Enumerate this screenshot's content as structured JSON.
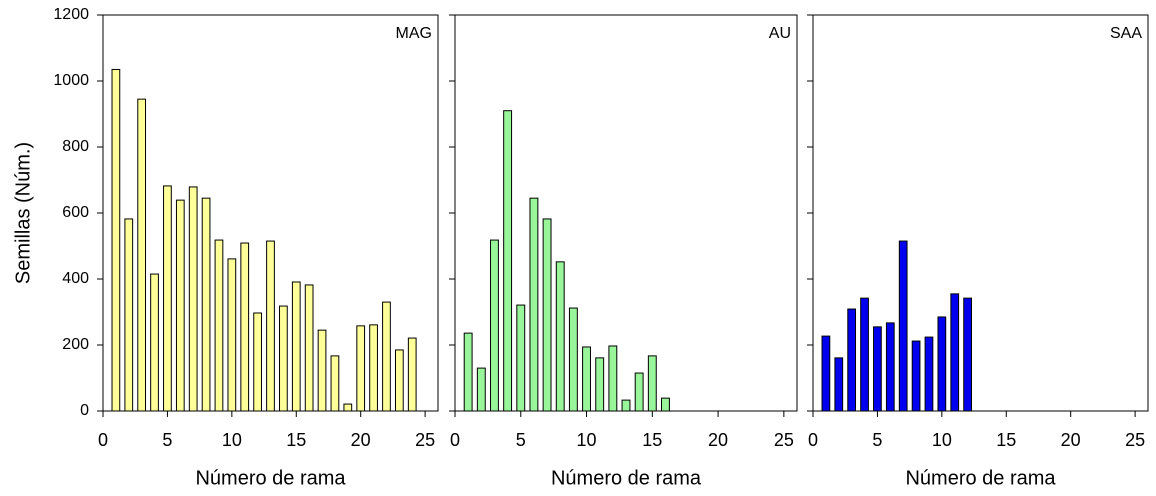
{
  "chart_data": [
    {
      "type": "bar",
      "label": "MAG",
      "ylabel": "Semillas (Núm.)",
      "xlabel": "Número de rama",
      "color": "#ffff99",
      "x": [
        1,
        2,
        3,
        4,
        5,
        6,
        7,
        8,
        9,
        10,
        11,
        12,
        13,
        14,
        15,
        16,
        17,
        18,
        19,
        20,
        21,
        22,
        23,
        24
      ],
      "values": [
        1035,
        582,
        945,
        415,
        682,
        639,
        679,
        645,
        518,
        461,
        509,
        297,
        515,
        318,
        391,
        382,
        245,
        167,
        21,
        258,
        261,
        330,
        185,
        221
      ],
      "xlim": [
        0,
        26
      ],
      "xticks": [
        0,
        5,
        10,
        15,
        20,
        25
      ],
      "ylim": [
        0,
        1200
      ],
      "yticks": [
        0,
        200,
        400,
        600,
        800,
        1000,
        1200
      ]
    },
    {
      "type": "bar",
      "label": "AU",
      "xlabel": "Número de rama",
      "color": "#99f599",
      "x": [
        1,
        2,
        3,
        4,
        5,
        6,
        7,
        8,
        9,
        10,
        11,
        12,
        13,
        14,
        15,
        16
      ],
      "values": [
        236,
        130,
        518,
        910,
        321,
        645,
        582,
        452,
        312,
        194,
        161,
        197,
        33,
        115,
        167,
        39
      ],
      "xlim": [
        0,
        26
      ],
      "xticks": [
        0,
        5,
        10,
        15,
        20,
        25
      ],
      "ylim": [
        0,
        1200
      ],
      "yticks": [
        0,
        200,
        400,
        600,
        800,
        1000,
        1200
      ]
    },
    {
      "type": "bar",
      "label": "SAA",
      "xlabel": "Número de rama",
      "color": "#0000ee",
      "x": [
        1,
        2,
        3,
        4,
        5,
        6,
        7,
        8,
        9,
        10,
        11,
        12
      ],
      "values": [
        227,
        161,
        309,
        342,
        255,
        267,
        515,
        212,
        224,
        285,
        355,
        342
      ],
      "xlim": [
        0,
        26
      ],
      "xticks": [
        0,
        5,
        10,
        15,
        20,
        25
      ],
      "ylim": [
        0,
        1200
      ],
      "yticks": [
        0,
        200,
        400,
        600,
        800,
        1000,
        1200
      ]
    }
  ]
}
